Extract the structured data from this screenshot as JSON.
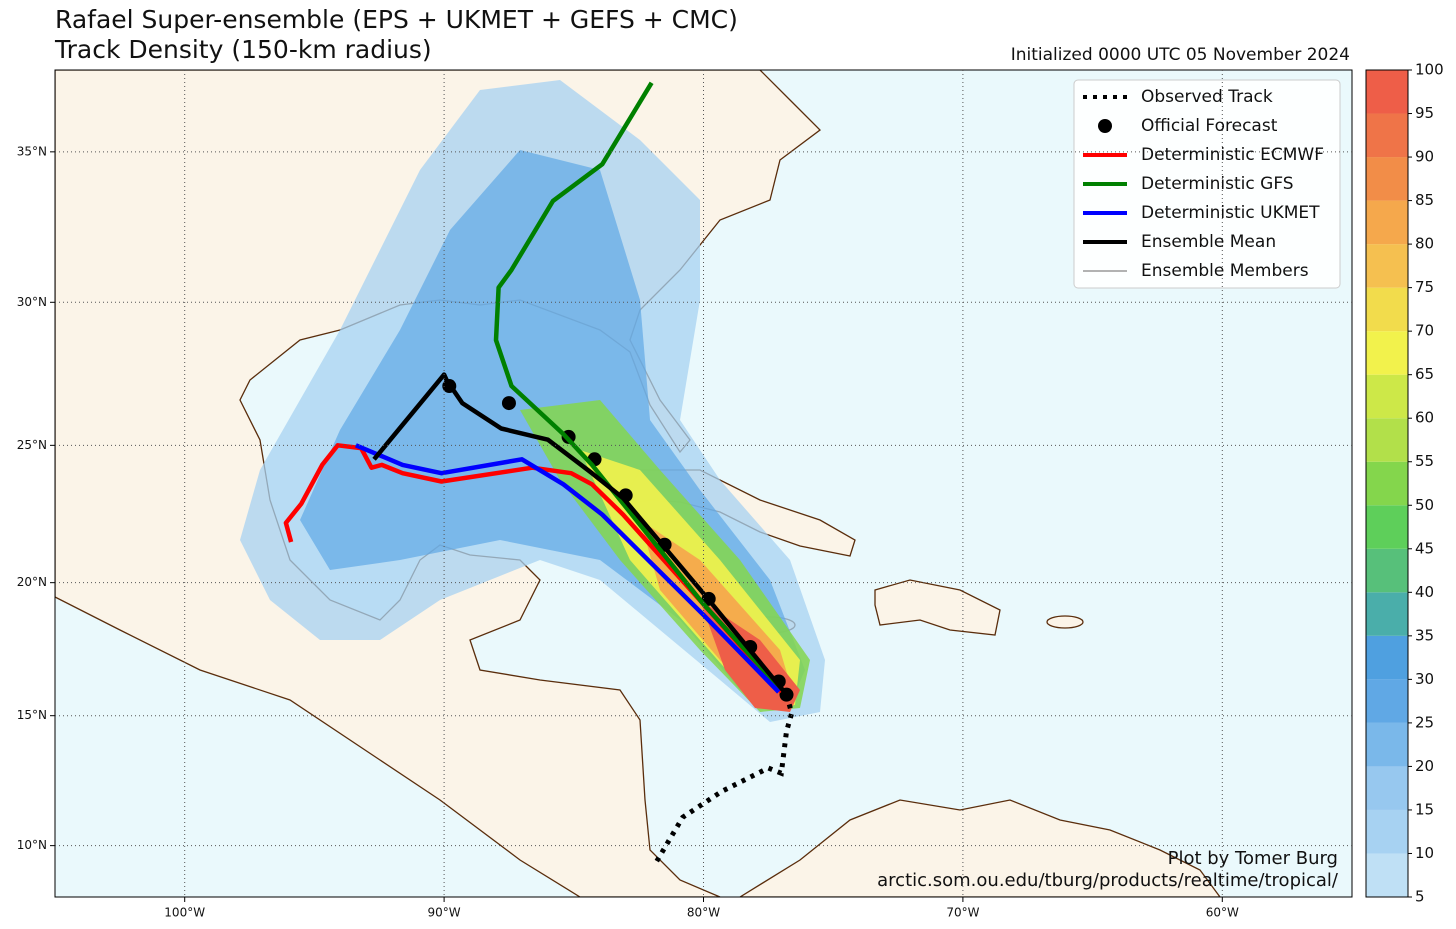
{
  "chart_data": {
    "type": "map",
    "title": "Rafael Super-ensemble (EPS + UKMET + GEFS + CMC)",
    "subtitle": "Track Density (150-km radius)",
    "init": "Initialized 0000 UTC 05 November 2024",
    "credit": "Plot by Tomer Burg",
    "url": "arctic.som.ou.edu/tburg/products/realtime/tropical/",
    "xlim": [
      -105,
      -55
    ],
    "ylim": [
      8,
      37.6
    ],
    "xticks": [
      {
        "value": -100,
        "label": "100°W"
      },
      {
        "value": -90,
        "label": "90°W"
      },
      {
        "value": -80,
        "label": "80°W"
      },
      {
        "value": -70,
        "label": "70°W"
      },
      {
        "value": -60,
        "label": "60°W"
      }
    ],
    "yticks": [
      {
        "value": 10,
        "label": "10°N"
      },
      {
        "value": 15,
        "label": "15°N"
      },
      {
        "value": 20,
        "label": "20°N"
      },
      {
        "value": 25,
        "label": "25°N"
      },
      {
        "value": 30,
        "label": "30°N"
      },
      {
        "value": 35,
        "label": "35°N"
      }
    ],
    "grid": true,
    "legend": "upper right",
    "series": [
      {
        "name": "Observed Track",
        "color": "#000000",
        "style": "dotted",
        "lon": [
          -81.8,
          -80.8,
          -79.3,
          -77.5,
          -77.0,
          -76.8,
          -76.6,
          -76.8
        ],
        "lat": [
          9.4,
          11.1,
          12.1,
          13.0,
          12.8,
          14.4,
          15.1,
          15.8
        ]
      },
      {
        "name": "Official Forecast",
        "color": "#000000",
        "style": "points",
        "lon": [
          -76.8,
          -77.1,
          -78.2,
          -79.8,
          -81.5,
          -83.0,
          -84.2,
          -85.2,
          -87.5,
          -89.8
        ],
        "lat": [
          15.8,
          16.3,
          17.6,
          19.4,
          21.4,
          23.2,
          24.5,
          25.3,
          26.5,
          27.1
        ]
      },
      {
        "name": "Deterministic ECMWF",
        "color": "#ff0000",
        "style": "solid",
        "lon": [
          -77.0,
          -80.0,
          -83.1,
          -84.3,
          -85.1,
          -86.6,
          -90.1,
          -91.6,
          -92.4,
          -92.8,
          -93.2,
          -94.1,
          -94.7,
          -95.5,
          -96.1,
          -95.9
        ],
        "lat": [
          15.9,
          19.2,
          22.5,
          23.6,
          24.0,
          24.2,
          23.7,
          24.0,
          24.3,
          24.2,
          24.9,
          25.0,
          24.3,
          22.9,
          22.2,
          21.5
        ]
      },
      {
        "name": "Deterministic GFS",
        "color": "#008000",
        "style": "solid",
        "lon": [
          -77.0,
          -80.0,
          -83.1,
          -84.3,
          -85.4,
          -87.4,
          -88.0,
          -87.9,
          -87.4,
          -85.8,
          -83.9,
          -82.0
        ],
        "lat": [
          16.0,
          19.2,
          22.9,
          24.3,
          25.4,
          27.1,
          28.7,
          30.5,
          31.1,
          33.4,
          34.6,
          37.2
        ]
      },
      {
        "name": "Deterministic UKMET",
        "color": "#0000ff",
        "style": "solid",
        "lon": [
          -77.1,
          -80.0,
          -83.9,
          -85.4,
          -87.0,
          -90.1,
          -91.6,
          -93.4
        ],
        "lat": [
          15.9,
          18.8,
          22.5,
          23.6,
          24.5,
          24.0,
          24.3,
          25.0
        ]
      },
      {
        "name": "Ensemble Mean",
        "color": "#000000",
        "style": "solid",
        "lon": [
          -76.8,
          -80.0,
          -83.1,
          -84.3,
          -86.0,
          -87.8,
          -89.3,
          -89.9,
          -90.0,
          -92.7
        ],
        "lat": [
          15.8,
          19.6,
          23.1,
          24.0,
          25.2,
          25.6,
          26.5,
          27.3,
          27.5,
          24.5
        ]
      },
      {
        "name": "Ensemble Members",
        "color": "#333333",
        "style": "thin"
      }
    ],
    "colorbar": {
      "ticks": [
        5,
        10,
        15,
        20,
        25,
        30,
        35,
        40,
        45,
        50,
        55,
        60,
        65,
        70,
        75,
        80,
        85,
        90,
        95,
        100
      ],
      "colors": [
        "#bfe0f5",
        "#a7d2f2",
        "#97c8ef",
        "#7ab8ea",
        "#60a8e5",
        "#4fa0e0",
        "#4aaeaa",
        "#57c07a",
        "#5ecf5a",
        "#84d64c",
        "#b2e04a",
        "#cde848",
        "#f2f24c",
        "#f2dc4c",
        "#f5c050",
        "#f5a84c",
        "#f28d48",
        "#ef7448",
        "#ee5e48"
      ]
    }
  }
}
